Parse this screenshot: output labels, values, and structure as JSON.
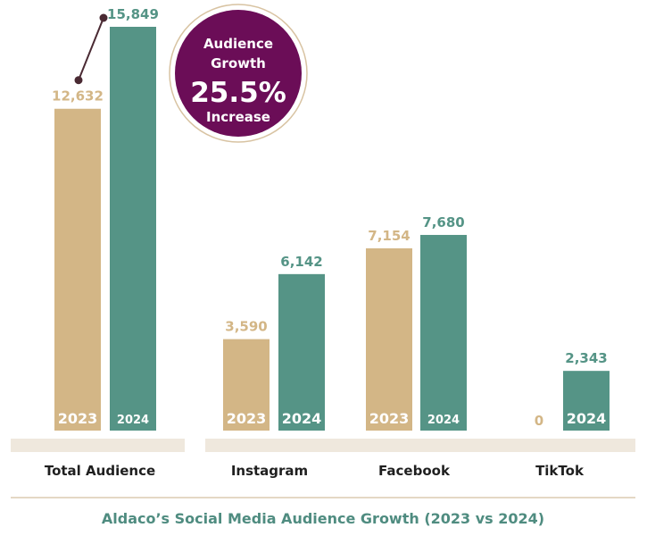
{
  "chart_data": {
    "type": "bar",
    "title": "Aldaco’s Social Media Audience Growth (2023 vs 2024)",
    "categories": [
      "Total Audience",
      "Instagram",
      "Facebook",
      "TikTok"
    ],
    "series": [
      {
        "name": "2023",
        "values": [
          12632,
          3590,
          7154,
          0
        ],
        "labels": [
          "12,632",
          "3,590",
          "7,154",
          "0"
        ]
      },
      {
        "name": "2024",
        "values": [
          15849,
          6142,
          7680,
          2343
        ],
        "labels": [
          "15,849",
          "6,142",
          "7,680",
          "2,343"
        ]
      }
    ],
    "ylim": [
      0,
      16000
    ],
    "grid": false,
    "colors": {
      "2023": "#d3b686",
      "2024": "#559486",
      "badge": "#6b0d57",
      "title": "#4f8c80",
      "base": "#efe8dd",
      "accent_line": "#4a2a33"
    }
  },
  "badge": {
    "line1": "Audience",
    "line2": "Growth",
    "value": "25.5%",
    "line3": "Increase"
  }
}
